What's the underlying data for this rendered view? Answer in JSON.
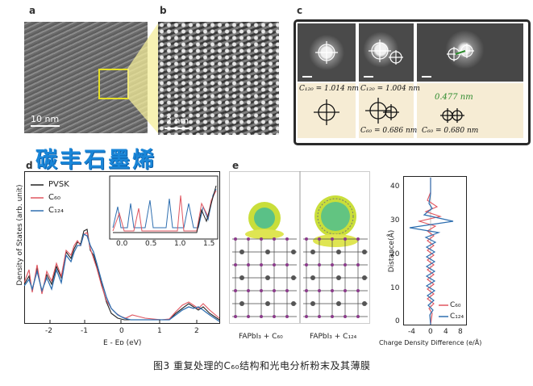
{
  "panels": {
    "a": {
      "label": "a",
      "scale": "10 nm"
    },
    "b": {
      "label": "b",
      "scale": "2 nm"
    },
    "c": {
      "label": "c",
      "measures": [
        {
          "top": "C₁₂₀ = 1.014 nm",
          "bottom": ""
        },
        {
          "top": "C₁₂₀ = 1.004 nm",
          "bottom": "C₆₀ = 0.686 nm"
        },
        {
          "top": "0.477 nm",
          "bottom": "C₆₀ = 0.680 nm"
        }
      ],
      "highlight_color": "#2e8b2e"
    },
    "d": {
      "label": "d",
      "ylabel": "Density of States (arb. unit)",
      "xlabel": "E - Eᴅ (eV)",
      "legend": [
        "PVSK",
        "C₆₀",
        "C₁₂₄"
      ],
      "xticks": [
        "-2",
        "-1",
        "0",
        "1",
        "2"
      ],
      "inset_xticks": [
        "0.0",
        "0.5",
        "1.0",
        "1.5"
      ]
    },
    "e": {
      "label": "e",
      "struct_labels": [
        "FAPbI₃ + C₆₀",
        "FAPbI₃ + C₁₂₄"
      ],
      "ylabel": "Distance(Å)",
      "xlabel": "Charge Density Difference (e/Å)",
      "yticks": [
        "40",
        "30",
        "20",
        "10",
        "0"
      ],
      "xticks": [
        "-4",
        "0",
        "4",
        "8"
      ],
      "legend": [
        "C₆₀",
        "C₁₂₄"
      ]
    }
  },
  "stamp_text": "碳丰石墨烯",
  "caption": "图3  重复处理的C₆₀结构和光电分析粉末及其薄膜",
  "colors": {
    "pvsk": "#222222",
    "c60": "#e0555f",
    "c124": "#2f6fb0",
    "stamp": "#1a86d8"
  }
}
